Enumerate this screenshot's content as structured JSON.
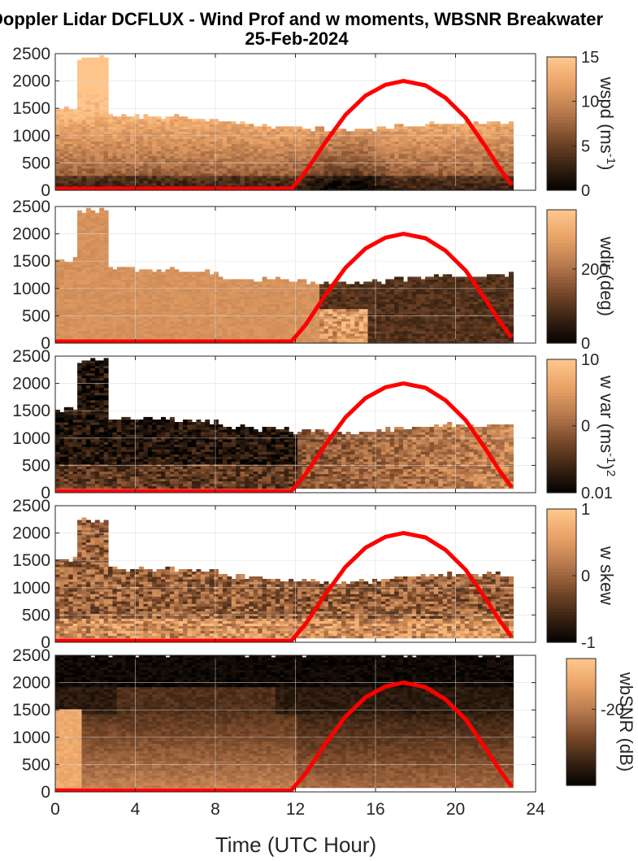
{
  "figure": {
    "title_line1": "Doppler Lidar DCFLUX - Wind Prof and w moments, WBSNR Breakwater",
    "title_line2": "25-Feb-2024"
  },
  "colors": {
    "curve": "#ff0000",
    "colormap": [
      "#000000",
      "#3a2313",
      "#7a4a2b",
      "#b87a4e",
      "#e8a266",
      "#ffc58a"
    ]
  },
  "chart_data": [
    {
      "type": "heatmap",
      "name": "wspd",
      "colorbar_label": "wspd (ms",
      "colorbar_label_sup": "-1",
      "colorbar_label_close": ")",
      "clim": [
        0,
        15
      ],
      "colorbar_ticks": [
        {
          "v": 0,
          "label": "0"
        },
        {
          "v": 5,
          "label": "5"
        },
        {
          "v": 10,
          "label": "10"
        },
        {
          "v": 15,
          "label": "15"
        }
      ]
    },
    {
      "type": "heatmap",
      "name": "wdir",
      "colorbar_label": "wdir (deg)",
      "colorbar_label_sup": "",
      "colorbar_label_close": "",
      "clim": [
        0,
        360
      ],
      "colorbar_ticks": [
        {
          "v": 0,
          "label": "0"
        },
        {
          "v": 200,
          "label": "200"
        }
      ]
    },
    {
      "type": "heatmap",
      "name": "w var",
      "colorbar_label": "w var (ms",
      "colorbar_label_sup": "-1",
      "colorbar_label_close": ")",
      "colorbar_label_sup2": "2",
      "clim": [
        0.01,
        10
      ],
      "clim_scale": "log",
      "colorbar_ticks": [
        {
          "v": 0.01,
          "label": "0.01"
        },
        {
          "v": 0.32,
          "label": "0"
        },
        {
          "v": 10,
          "label": "10"
        }
      ]
    },
    {
      "type": "heatmap",
      "name": "w skew",
      "colorbar_label": "w skew",
      "colorbar_label_sup": "",
      "colorbar_label_close": "",
      "clim": [
        -1,
        1
      ],
      "colorbar_ticks": [
        {
          "v": -1,
          "label": "-1"
        },
        {
          "v": 0,
          "label": "0"
        },
        {
          "v": 1,
          "label": "1"
        }
      ]
    },
    {
      "type": "heatmap",
      "name": "wbSNR",
      "colorbar_label": "wbSNR (dB)",
      "colorbar_label_sup": "",
      "colorbar_label_close": "",
      "clim": [
        -32,
        -12
      ],
      "colorbar_ticks": [
        {
          "v": -20,
          "label": "-20"
        }
      ]
    }
  ],
  "axes": {
    "xlabel": "Time (UTC Hour)",
    "xlim": [
      0,
      24
    ],
    "ylim": [
      0,
      2500
    ],
    "xticks": [
      {
        "v": 0,
        "label": "0"
      },
      {
        "v": 4,
        "label": "4"
      },
      {
        "v": 8,
        "label": "8"
      },
      {
        "v": 12,
        "label": "12"
      },
      {
        "v": 16,
        "label": "16"
      },
      {
        "v": 20,
        "label": "20"
      },
      {
        "v": 24,
        "label": "24"
      }
    ],
    "yticks": [
      {
        "v": 0,
        "label": "0"
      },
      {
        "v": 500,
        "label": "500"
      },
      {
        "v": 1000,
        "label": "1000"
      },
      {
        "v": 1500,
        "label": "1500"
      },
      {
        "v": 2000,
        "label": "2000"
      },
      {
        "v": 2500,
        "label": "2500"
      }
    ],
    "grid": true
  },
  "overlay_curve": {
    "type": "line",
    "x": [
      0,
      11.8,
      12.5,
      13.5,
      14.5,
      15.5,
      16.5,
      17.4,
      18.5,
      19.5,
      20.5,
      21.5,
      22.2,
      22.8
    ],
    "y": [
      30,
      30,
      330,
      880,
      1380,
      1730,
      1930,
      2000,
      1920,
      1690,
      1330,
      800,
      400,
      100
    ]
  }
}
